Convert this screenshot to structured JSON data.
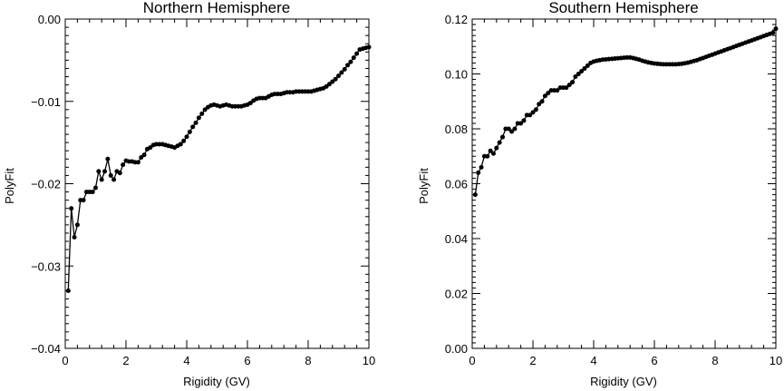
{
  "chart_data": [
    {
      "type": "line",
      "title": "Northern Hemisphere",
      "xlabel": "Rigidity (GV)",
      "ylabel": "PolyFit",
      "xlim": [
        0,
        10
      ],
      "ylim": [
        -0.04,
        0.0
      ],
      "x_ticks": [
        0,
        2,
        4,
        6,
        8,
        10
      ],
      "x_tick_labels": [
        "0",
        "2",
        "4",
        "6",
        "8",
        "10"
      ],
      "y_ticks": [
        -0.04,
        -0.03,
        -0.02,
        -0.01,
        0.0
      ],
      "y_tick_labels": [
        "−0.04",
        "−0.03",
        "−0.02",
        "−0.01",
        "0.00"
      ],
      "grid": false,
      "marker": "circle",
      "color": "#000000",
      "series": [
        {
          "x": [
            0.1,
            0.2,
            0.3,
            0.4,
            0.5,
            0.6,
            0.7,
            0.8,
            0.9,
            1.0,
            1.1,
            1.2,
            1.3,
            1.4,
            1.5,
            1.6,
            1.7,
            1.8,
            1.9,
            2.0,
            2.1,
            2.2,
            2.3,
            2.4,
            2.5,
            2.6,
            2.7,
            2.8,
            2.9,
            3.0,
            3.1,
            3.2,
            3.3,
            3.4,
            3.5,
            3.6,
            3.7,
            3.8,
            3.9,
            4.0,
            4.1,
            4.2,
            4.3,
            4.4,
            4.5,
            4.6,
            4.7,
            4.8,
            4.9,
            5.0,
            5.1,
            5.2,
            5.3,
            5.4,
            5.5,
            5.6,
            5.7,
            5.8,
            5.9,
            6.0,
            6.1,
            6.2,
            6.3,
            6.4,
            6.5,
            6.6,
            6.7,
            6.8,
            6.9,
            7.0,
            7.1,
            7.2,
            7.3,
            7.4,
            7.5,
            7.6,
            7.7,
            7.8,
            7.9,
            8.0,
            8.1,
            8.2,
            8.3,
            8.4,
            8.5,
            8.6,
            8.7,
            8.8,
            8.9,
            9.0,
            9.1,
            9.2,
            9.3,
            9.4,
            9.5,
            9.6,
            9.7,
            9.8,
            9.9,
            10.0
          ],
          "y": [
            -0.033,
            -0.023,
            -0.0265,
            -0.025,
            -0.022,
            -0.022,
            -0.021,
            -0.021,
            -0.021,
            -0.0205,
            -0.0185,
            -0.0195,
            -0.0185,
            -0.017,
            -0.019,
            -0.0195,
            -0.0185,
            -0.0187,
            -0.0177,
            -0.0172,
            -0.0173,
            -0.0173,
            -0.0174,
            -0.0174,
            -0.0168,
            -0.0165,
            -0.0158,
            -0.0156,
            -0.0153,
            -0.0152,
            -0.0152,
            -0.0152,
            -0.0153,
            -0.0154,
            -0.0155,
            -0.0156,
            -0.0154,
            -0.0152,
            -0.0148,
            -0.0143,
            -0.0137,
            -0.0131,
            -0.0126,
            -0.012,
            -0.0115,
            -0.011,
            -0.0107,
            -0.0105,
            -0.0104,
            -0.0105,
            -0.0106,
            -0.0105,
            -0.0104,
            -0.0105,
            -0.0106,
            -0.0106,
            -0.0106,
            -0.0106,
            -0.0105,
            -0.0104,
            -0.0102,
            -0.0099,
            -0.0097,
            -0.0096,
            -0.0096,
            -0.0096,
            -0.0094,
            -0.0092,
            -0.0091,
            -0.0091,
            -0.0091,
            -0.009,
            -0.0089,
            -0.0089,
            -0.0089,
            -0.0088,
            -0.0088,
            -0.0088,
            -0.0088,
            -0.0088,
            -0.0088,
            -0.0087,
            -0.0086,
            -0.0085,
            -0.0084,
            -0.0082,
            -0.0079,
            -0.0076,
            -0.0073,
            -0.0069,
            -0.0065,
            -0.0061,
            -0.0056,
            -0.0052,
            -0.0047,
            -0.0042,
            -0.0037,
            -0.0036,
            -0.0035,
            -0.0034
          ]
        }
      ]
    },
    {
      "type": "line",
      "title": "Southern Hemisphere",
      "xlabel": "Rigidity (GV)",
      "ylabel": "PolyFit",
      "xlim": [
        0,
        10
      ],
      "ylim": [
        0.0,
        0.12
      ],
      "x_ticks": [
        0,
        2,
        4,
        6,
        8,
        10
      ],
      "x_tick_labels": [
        "0",
        "2",
        "4",
        "6",
        "8",
        "10"
      ],
      "y_ticks": [
        0.0,
        0.02,
        0.04,
        0.06,
        0.08,
        0.1,
        0.12
      ],
      "y_tick_labels": [
        "0.00",
        "0.02",
        "0.04",
        "0.06",
        "0.08",
        "0.10",
        "0.12"
      ],
      "grid": false,
      "marker": "circle",
      "color": "#000000",
      "series": [
        {
          "x": [
            0.1,
            0.2,
            0.3,
            0.4,
            0.5,
            0.6,
            0.7,
            0.8,
            0.9,
            1.0,
            1.1,
            1.2,
            1.3,
            1.4,
            1.5,
            1.6,
            1.7,
            1.8,
            1.9,
            2.0,
            2.1,
            2.2,
            2.3,
            2.4,
            2.5,
            2.6,
            2.7,
            2.8,
            2.9,
            3.0,
            3.1,
            3.2,
            3.3,
            3.4,
            3.5,
            3.6,
            3.7,
            3.8,
            3.9,
            4.0,
            4.1,
            4.2,
            4.3,
            4.4,
            4.5,
            4.6,
            4.7,
            4.8,
            4.9,
            5.0,
            5.1,
            5.2,
            5.3,
            5.4,
            5.5,
            5.6,
            5.7,
            5.8,
            5.9,
            6.0,
            6.1,
            6.2,
            6.3,
            6.4,
            6.5,
            6.6,
            6.7,
            6.8,
            6.9,
            7.0,
            7.1,
            7.2,
            7.3,
            7.4,
            7.5,
            7.6,
            7.7,
            7.8,
            7.9,
            8.0,
            8.1,
            8.2,
            8.3,
            8.4,
            8.5,
            8.6,
            8.7,
            8.8,
            8.9,
            9.0,
            9.1,
            9.2,
            9.3,
            9.4,
            9.5,
            9.6,
            9.7,
            9.8,
            9.9,
            10.0
          ],
          "y": [
            0.056,
            0.064,
            0.066,
            0.07,
            0.07,
            0.072,
            0.071,
            0.073,
            0.075,
            0.077,
            0.08,
            0.08,
            0.079,
            0.08,
            0.082,
            0.082,
            0.083,
            0.085,
            0.085,
            0.086,
            0.087,
            0.089,
            0.09,
            0.092,
            0.093,
            0.094,
            0.094,
            0.094,
            0.095,
            0.095,
            0.095,
            0.096,
            0.097,
            0.099,
            0.1,
            0.101,
            0.102,
            0.103,
            0.104,
            0.1045,
            0.1048,
            0.105,
            0.1052,
            0.1053,
            0.1054,
            0.1055,
            0.1056,
            0.1057,
            0.1058,
            0.1059,
            0.106,
            0.106,
            0.1058,
            0.1055,
            0.1052,
            0.1048,
            0.1045,
            0.1042,
            0.104,
            0.1038,
            0.1037,
            0.1036,
            0.1035,
            0.1035,
            0.1035,
            0.1035,
            0.1035,
            0.1036,
            0.1037,
            0.1039,
            0.1041,
            0.1044,
            0.1047,
            0.105,
            0.1054,
            0.1058,
            0.1062,
            0.1066,
            0.107,
            0.1074,
            0.1078,
            0.1082,
            0.1086,
            0.109,
            0.1094,
            0.1098,
            0.1102,
            0.1106,
            0.111,
            0.1114,
            0.1118,
            0.1122,
            0.1126,
            0.113,
            0.1134,
            0.1138,
            0.1142,
            0.1146,
            0.115,
            0.1165
          ]
        }
      ]
    }
  ]
}
